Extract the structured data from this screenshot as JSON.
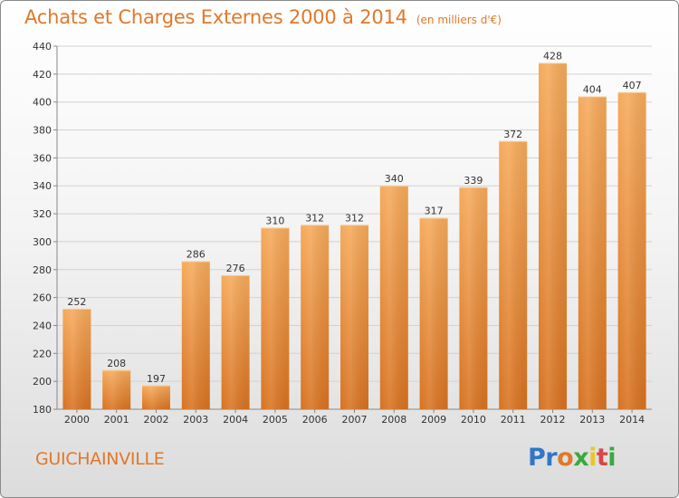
{
  "header": {
    "title": "Achats et Charges Externes 2000 à 2014",
    "subtitle": "(en milliers d'€)"
  },
  "footer": {
    "commune": "GUICHAINVILLE",
    "logo_text": "Proxiti"
  },
  "colors": {
    "bar_light": "#f5a655",
    "bar_dark": "#d9731f",
    "accent": "#e1782a"
  },
  "chart_data": {
    "type": "bar",
    "title": "Achats et Charges Externes 2000 à 2014",
    "subtitle": "(en milliers d'€)",
    "categories": [
      "2000",
      "2001",
      "2002",
      "2003",
      "2004",
      "2005",
      "2006",
      "2007",
      "2008",
      "2009",
      "2010",
      "2011",
      "2012",
      "2013",
      "2014"
    ],
    "values": [
      252,
      208,
      197,
      286,
      276,
      310,
      312,
      312,
      340,
      317,
      339,
      372,
      428,
      404,
      407
    ],
    "ylim": [
      180,
      440
    ],
    "yticks": [
      180,
      200,
      220,
      240,
      260,
      280,
      300,
      320,
      340,
      360,
      380,
      400,
      420,
      440
    ],
    "grid": true,
    "data_labels": true
  }
}
